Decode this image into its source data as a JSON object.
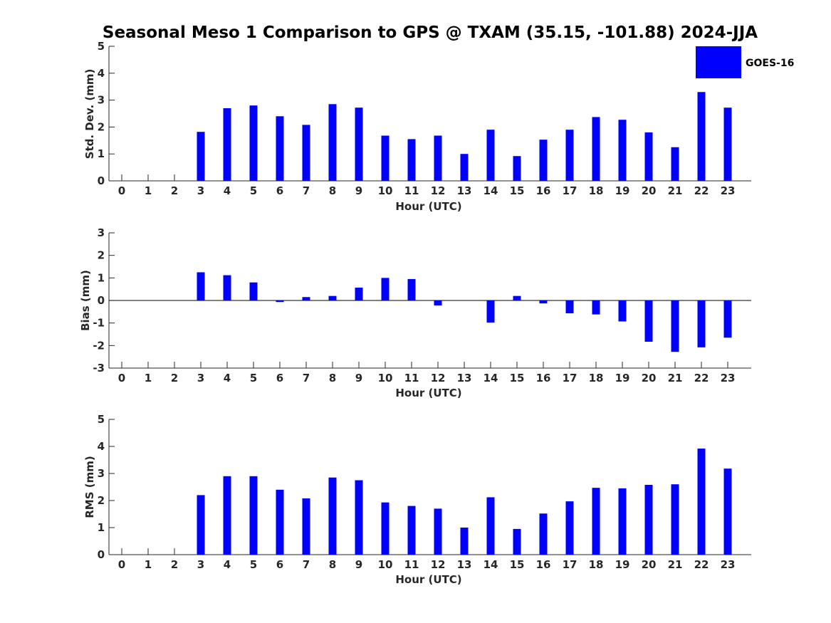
{
  "figure": {
    "title": "Seasonal Meso 1 Comparison to GPS @ TXAM (35.15, -101.88) 2024-JJA"
  },
  "legend": {
    "label": "GOES-16",
    "color": "#0000ff"
  },
  "chart_data": [
    {
      "type": "bar",
      "xlabel": "Hour (UTC)",
      "ylabel": "Std. Dev. (mm)",
      "ylim": [
        0,
        5
      ],
      "yticks": [
        "0",
        "1",
        "2",
        "3",
        "4",
        "5"
      ],
      "categories": [
        "0",
        "1",
        "2",
        "3",
        "4",
        "5",
        "6",
        "7",
        "8",
        "9",
        "10",
        "11",
        "12",
        "13",
        "14",
        "15",
        "16",
        "17",
        "18",
        "19",
        "20",
        "21",
        "22",
        "23"
      ],
      "series": [
        {
          "name": "GOES-16",
          "values": [
            0,
            0,
            0,
            1.82,
            2.7,
            2.8,
            2.4,
            2.08,
            2.85,
            2.72,
            1.68,
            1.55,
            1.68,
            1.0,
            1.9,
            0.92,
            1.53,
            1.9,
            2.37,
            2.27,
            1.8,
            1.25,
            3.3,
            2.72
          ]
        }
      ]
    },
    {
      "type": "bar",
      "xlabel": "Hour (UTC)",
      "ylabel": "Bias (mm)",
      "ylim": [
        -3,
        3
      ],
      "yticks": [
        "-3",
        "-2",
        "-1",
        "0",
        "1",
        "2",
        "3"
      ],
      "categories": [
        "0",
        "1",
        "2",
        "3",
        "4",
        "5",
        "6",
        "7",
        "8",
        "9",
        "10",
        "11",
        "12",
        "13",
        "14",
        "15",
        "16",
        "17",
        "18",
        "19",
        "20",
        "21",
        "22",
        "23"
      ],
      "series": [
        {
          "name": "GOES-16",
          "values": [
            0,
            0,
            0,
            1.25,
            1.12,
            0.8,
            -0.07,
            0.15,
            0.2,
            0.57,
            1.0,
            0.95,
            -0.22,
            0,
            -0.98,
            0.2,
            -0.13,
            -0.57,
            -0.62,
            -0.93,
            -1.83,
            -2.28,
            -2.08,
            -1.65
          ]
        }
      ]
    },
    {
      "type": "bar",
      "xlabel": "Hour (UTC)",
      "ylabel": "RMS (mm)",
      "ylim": [
        0,
        5
      ],
      "yticks": [
        "0",
        "1",
        "2",
        "3",
        "4",
        "5"
      ],
      "categories": [
        "0",
        "1",
        "2",
        "3",
        "4",
        "5",
        "6",
        "7",
        "8",
        "9",
        "10",
        "11",
        "12",
        "13",
        "14",
        "15",
        "16",
        "17",
        "18",
        "19",
        "20",
        "21",
        "22",
        "23"
      ],
      "series": [
        {
          "name": "GOES-16",
          "values": [
            0,
            0,
            0,
            2.2,
            2.9,
            2.9,
            2.4,
            2.08,
            2.85,
            2.75,
            1.93,
            1.8,
            1.7,
            1.0,
            2.12,
            0.95,
            1.52,
            1.97,
            2.47,
            2.45,
            2.58,
            2.6,
            3.92,
            3.18
          ]
        }
      ]
    }
  ]
}
